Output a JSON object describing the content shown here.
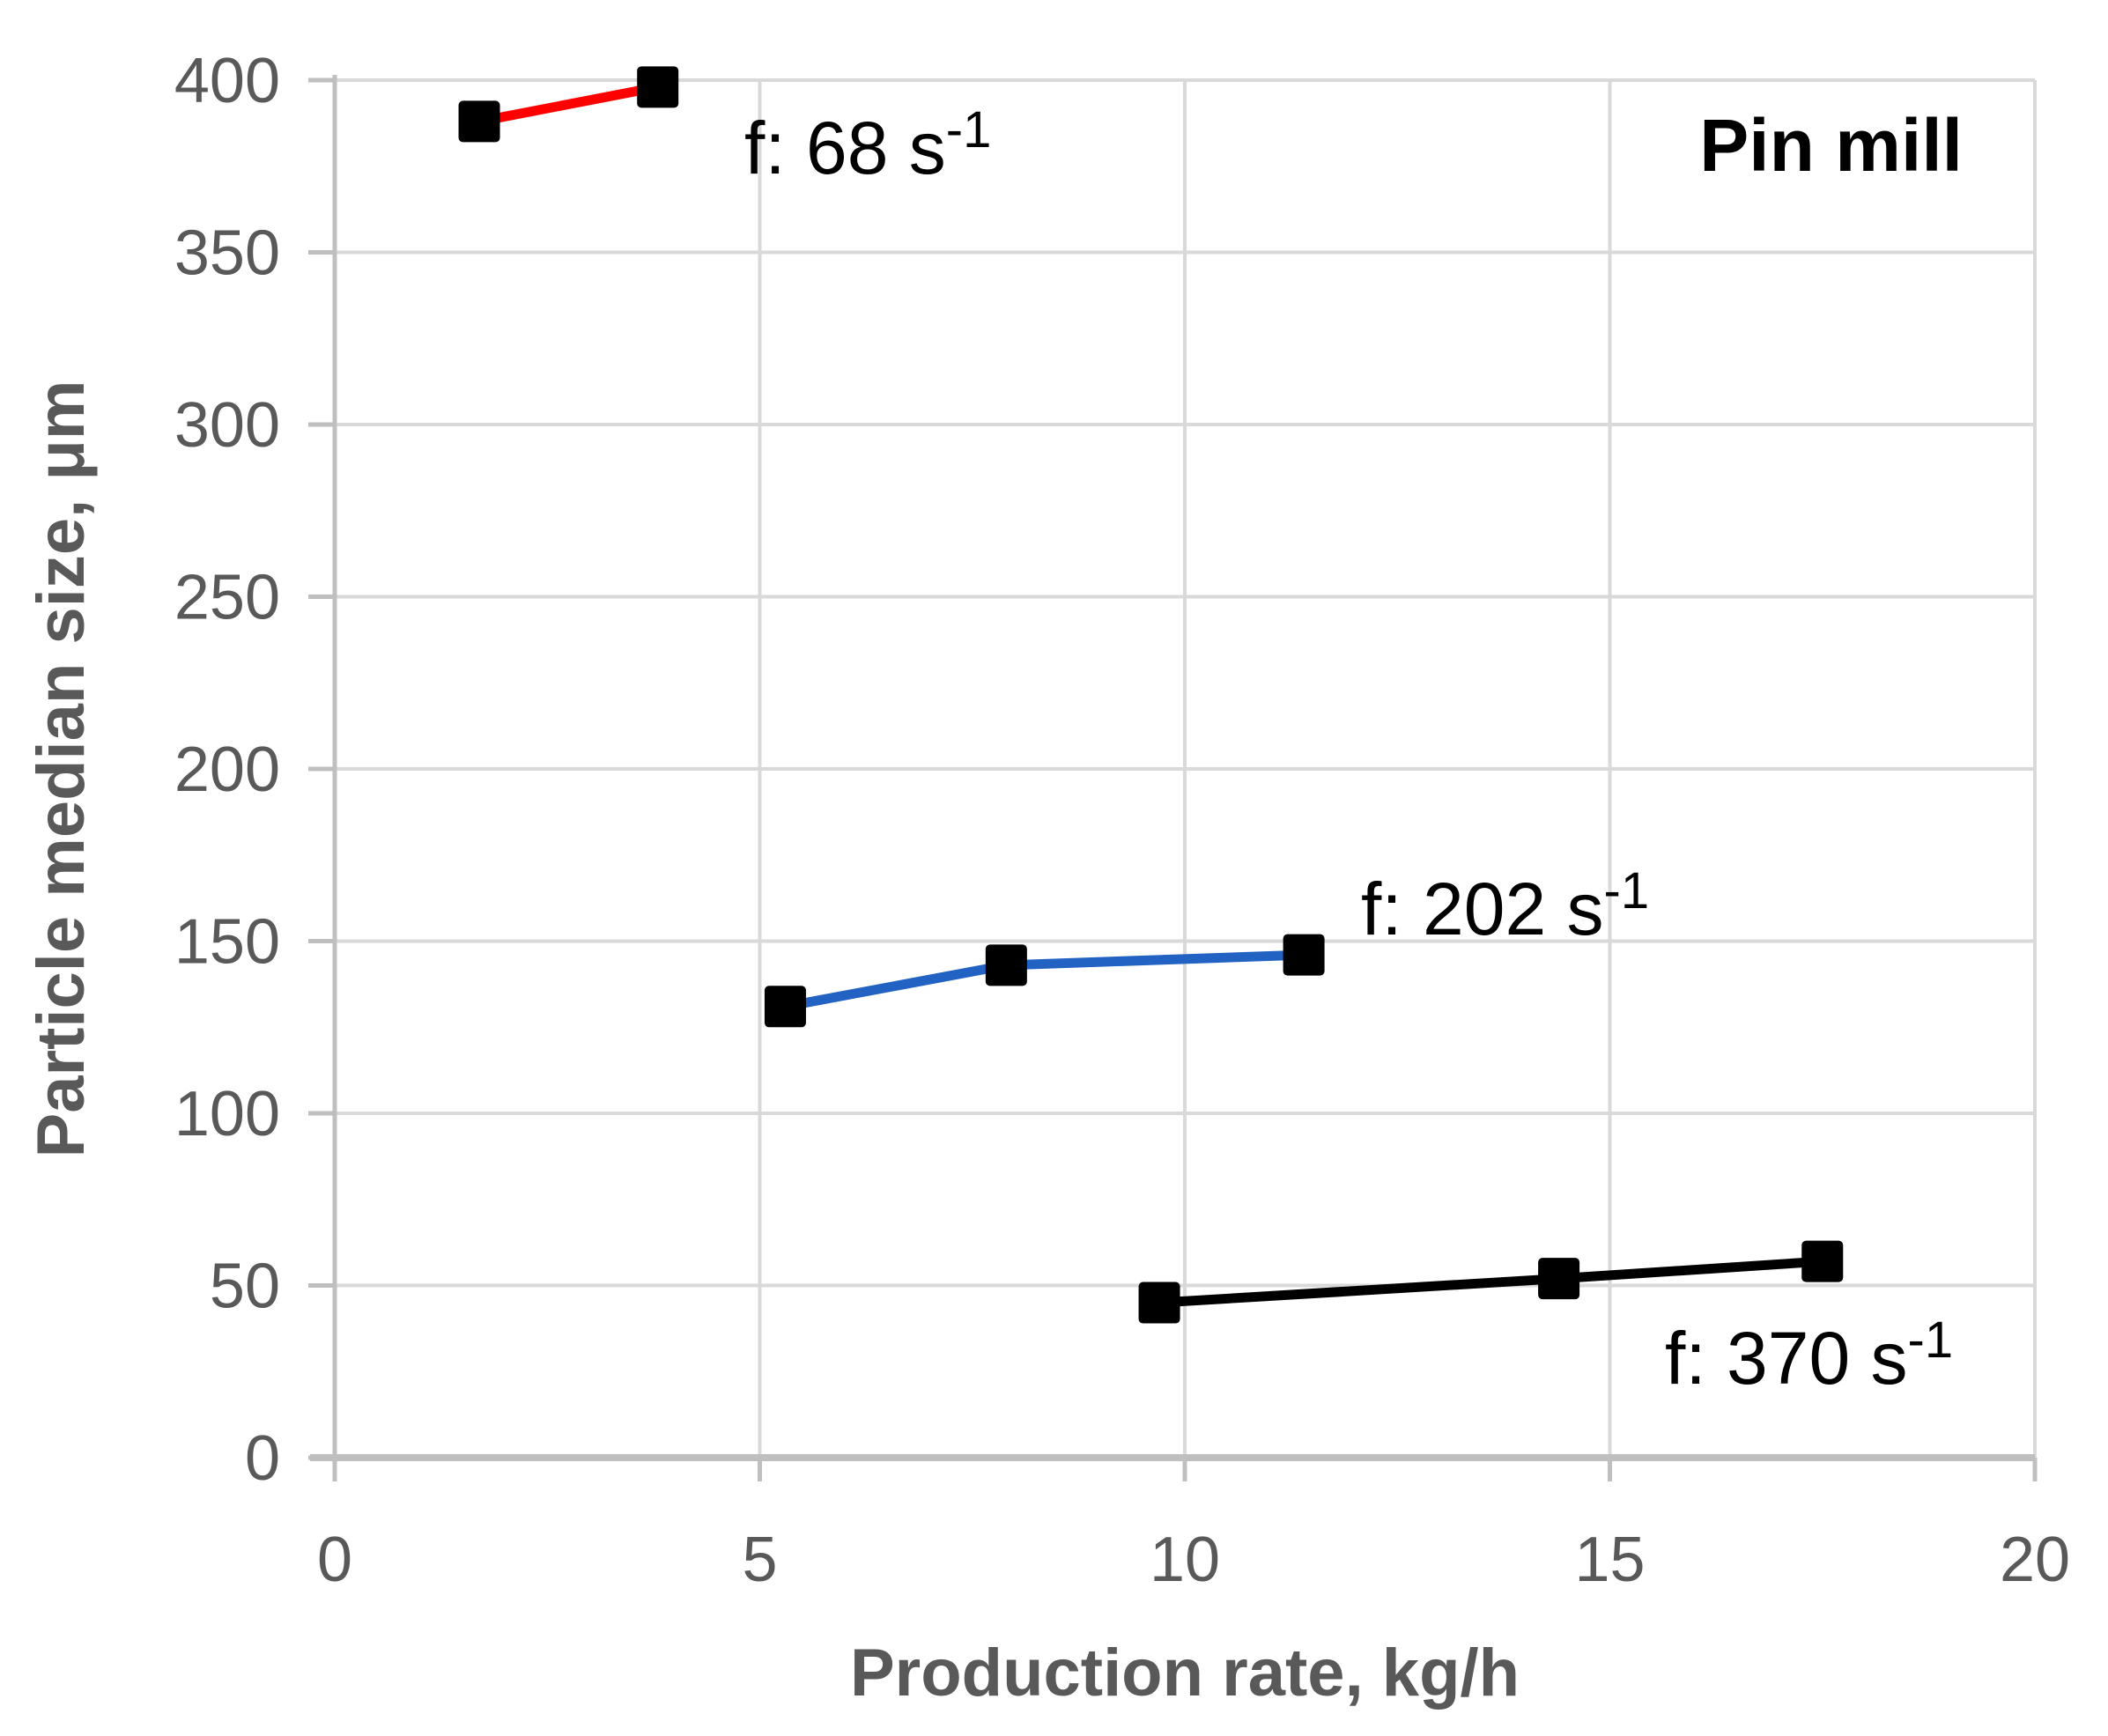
{
  "chart_data": {
    "type": "scatter",
    "corner_label": "Pin mill",
    "xlabel": "Production rate, kg/h",
    "ylabel": "Particle median size, μm",
    "xlim": [
      0,
      20
    ],
    "ylim": [
      0,
      400
    ],
    "x_ticks": [
      0,
      5,
      10,
      15,
      20
    ],
    "y_ticks": [
      0,
      50,
      100,
      150,
      200,
      250,
      300,
      350,
      400
    ],
    "grid": true,
    "legend_position": "none",
    "marker": {
      "shape": "square",
      "color": "#000000"
    },
    "series": [
      {
        "name": "f: 68 s⁻¹",
        "color": "#FF0000",
        "points": [
          [
            1.7,
            388
          ],
          [
            3.8,
            398
          ]
        ],
        "label": {
          "text": "f: 68 s",
          "sup": "-1"
        }
      },
      {
        "name": "f: 202 s⁻¹",
        "color": "#2262C2",
        "points": [
          [
            5.3,
            131
          ],
          [
            7.9,
            143
          ],
          [
            11.4,
            146
          ]
        ],
        "label": {
          "text": "f: 202 s",
          "sup": "-1"
        }
      },
      {
        "name": "f: 370 s⁻¹",
        "color": "#000000",
        "points": [
          [
            9.7,
            45
          ],
          [
            14.4,
            52
          ],
          [
            17.5,
            57
          ]
        ],
        "label": {
          "text": "f: 370 s",
          "sup": "-1"
        }
      }
    ],
    "colors": {
      "gridline": "#D9D9D9",
      "axis_line": "#BFBFBF",
      "tick_label": "#595959",
      "axis_title": "#595959",
      "annotation": "#000000"
    }
  }
}
